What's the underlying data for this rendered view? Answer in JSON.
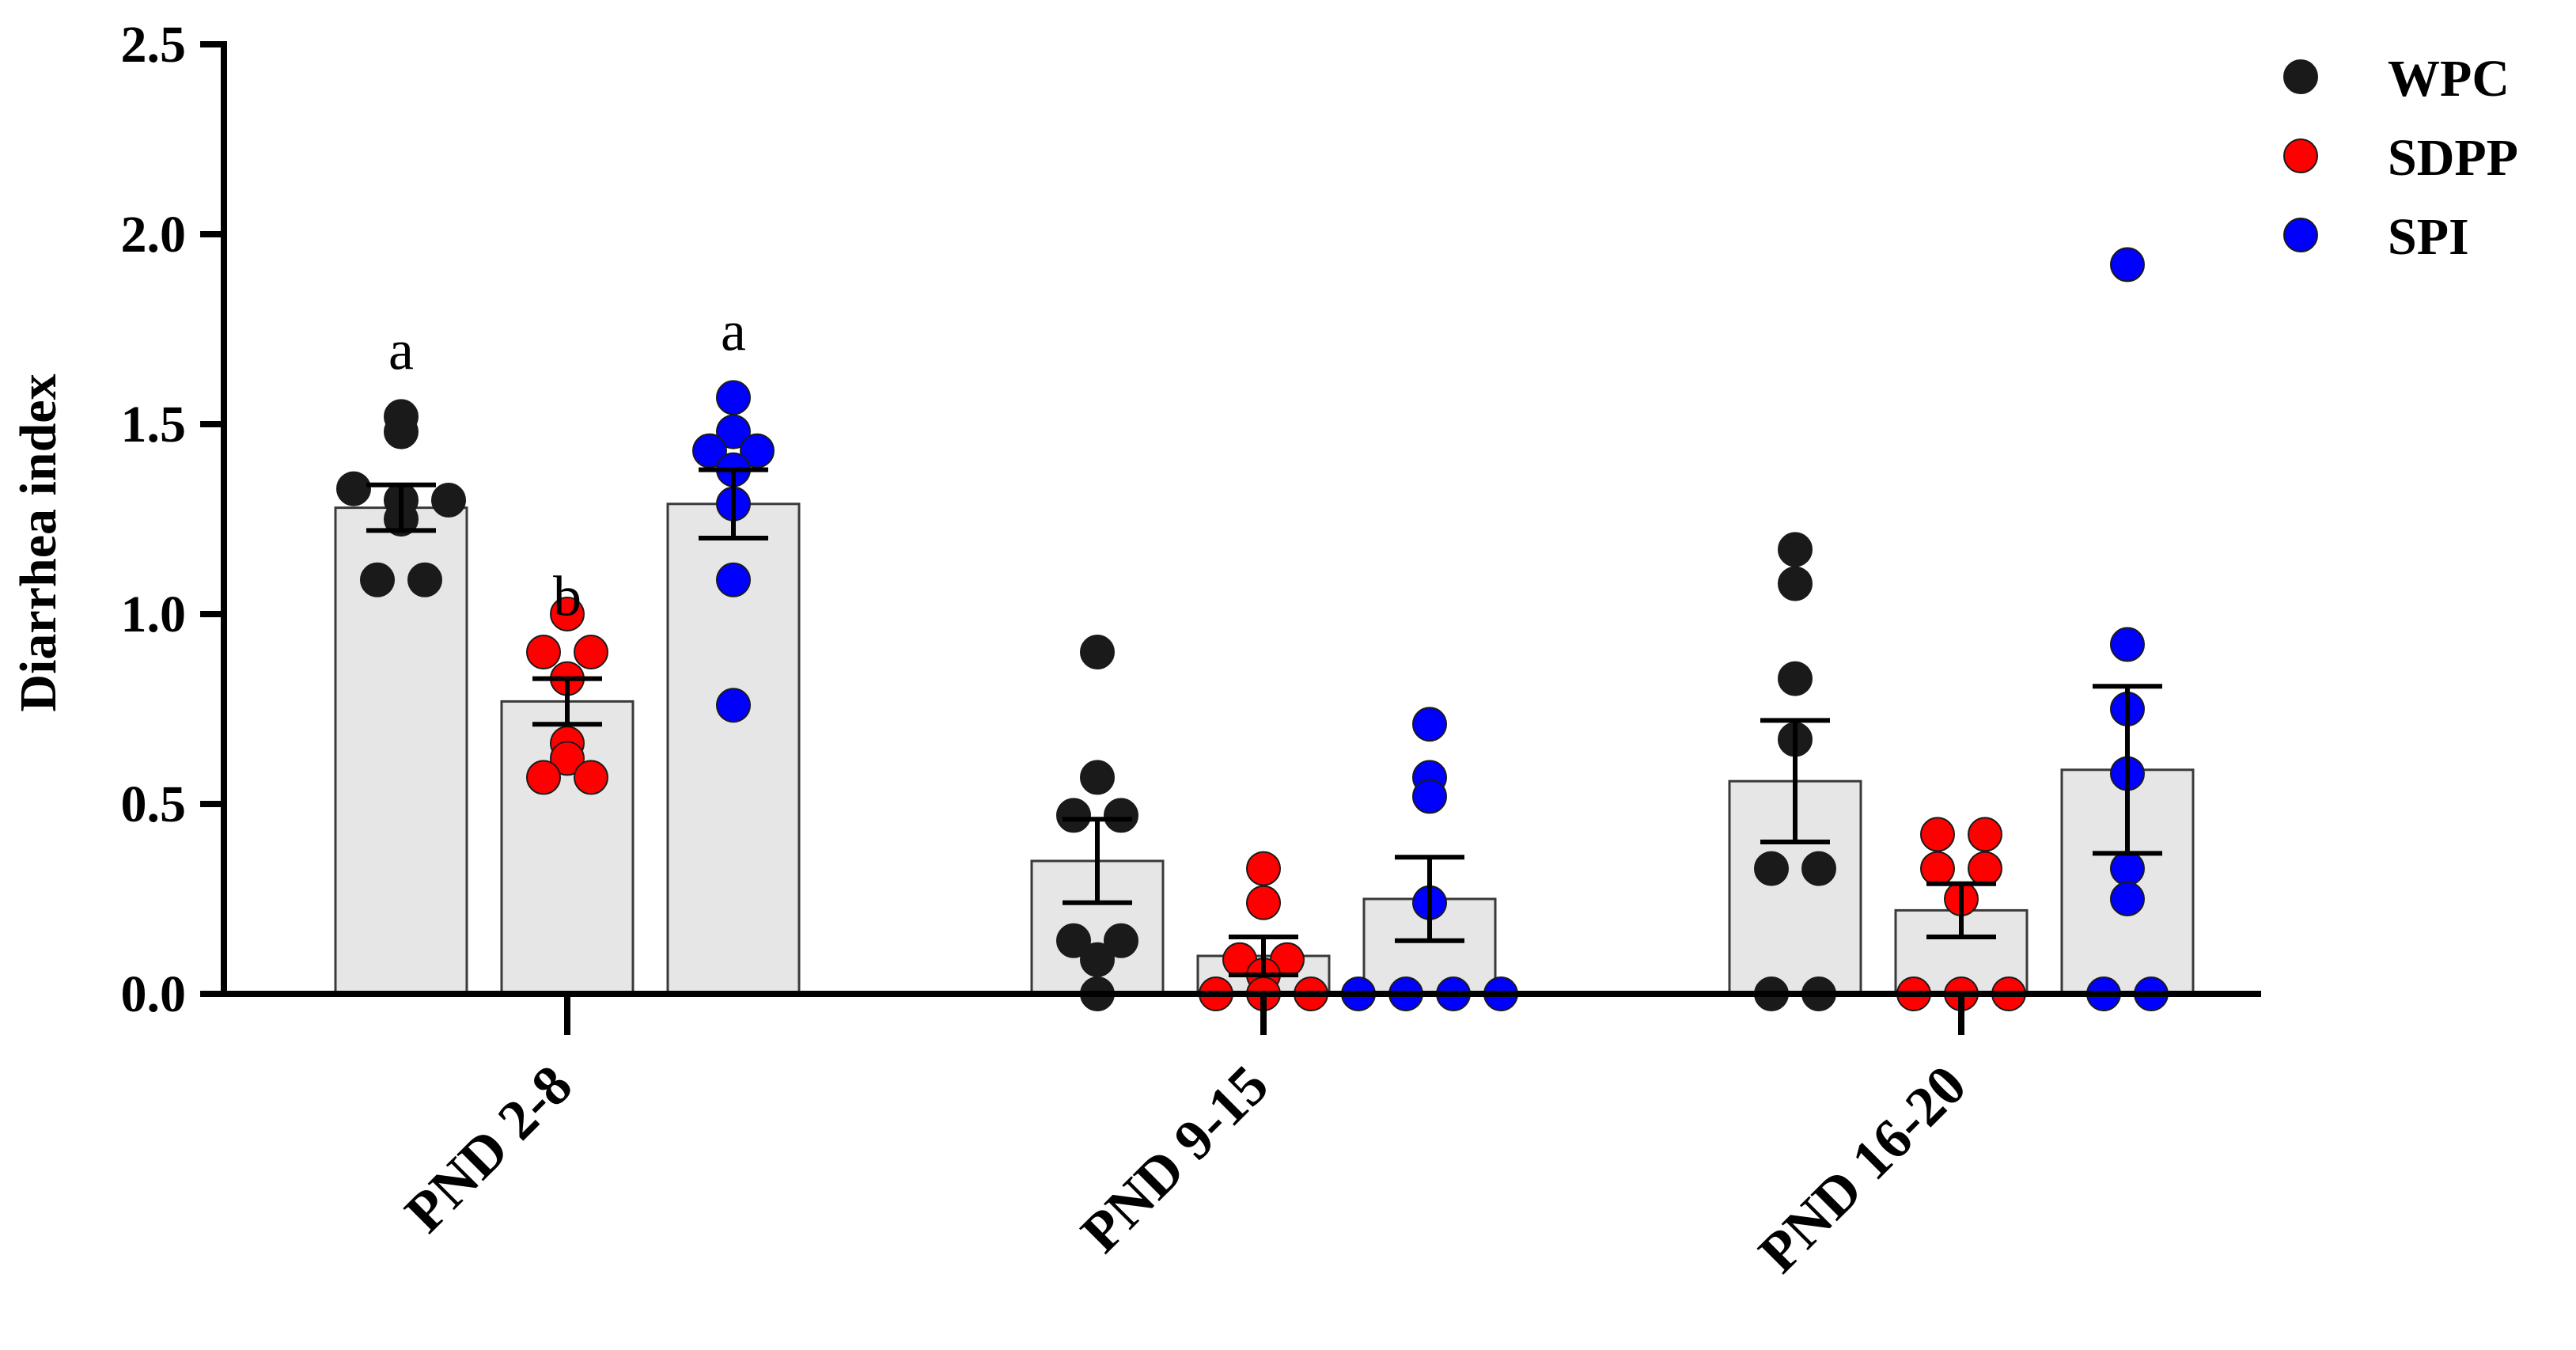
{
  "chart_data": {
    "type": "bar",
    "title": "",
    "xlabel": "",
    "ylabel": "Diarrhea index",
    "ylim": [
      0,
      2.5
    ],
    "yticks": [
      "0.0",
      "0.5",
      "1.0",
      "1.5",
      "2.0",
      "2.5"
    ],
    "categories": [
      "PND 2-8",
      "PND 9-15",
      "PND 16-20"
    ],
    "legend_position": "top-right",
    "series": [
      {
        "name": "WPC",
        "color": "#1a1a1a",
        "means": [
          1.28,
          0.35,
          0.56
        ],
        "sem": [
          0.06,
          0.11,
          0.16
        ],
        "points": [
          [
            1.52,
            1.48,
            1.33,
            1.3,
            1.3,
            1.25,
            1.09,
            1.09
          ],
          [
            0.9,
            0.57,
            0.47,
            0.47,
            0.14,
            0.14,
            0.09,
            0.0
          ],
          [
            1.17,
            1.08,
            0.83,
            0.67,
            0.33,
            0.33,
            0.0,
            0.0
          ]
        ]
      },
      {
        "name": "SDPP",
        "color": "#ff0000",
        "means": [
          0.77,
          0.1,
          0.22
        ],
        "sem": [
          0.06,
          0.05,
          0.07
        ],
        "points": [
          [
            1.0,
            0.9,
            0.9,
            0.83,
            0.66,
            0.62,
            0.57,
            0.57
          ],
          [
            0.33,
            0.24,
            0.09,
            0.09,
            0.05,
            0.0,
            0.0,
            0.0
          ],
          [
            0.42,
            0.42,
            0.33,
            0.33,
            0.25,
            0.0,
            0.0,
            0.0
          ]
        ]
      },
      {
        "name": "SPI",
        "color": "#0000ff",
        "means": [
          1.29,
          0.25,
          0.59
        ],
        "sem": [
          0.09,
          0.11,
          0.22
        ],
        "points": [
          [
            1.57,
            1.48,
            1.43,
            1.43,
            1.38,
            1.29,
            1.09,
            0.76
          ],
          [
            0.71,
            0.57,
            0.52,
            0.24,
            0.0,
            0.0,
            0.0,
            0.0
          ],
          [
            1.92,
            0.92,
            0.75,
            0.58,
            0.33,
            0.25,
            0.0,
            0.0
          ]
        ]
      }
    ],
    "annotations": [
      {
        "group": 0,
        "series": 0,
        "text": "a"
      },
      {
        "group": 0,
        "series": 1,
        "text": "b"
      },
      {
        "group": 0,
        "series": 2,
        "text": "a"
      }
    ]
  }
}
